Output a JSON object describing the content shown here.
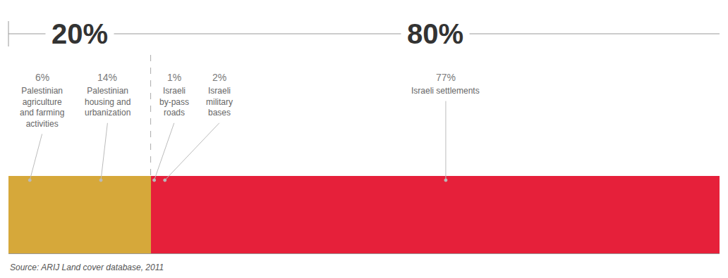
{
  "chart_data": {
    "type": "bar",
    "orientation": "horizontal",
    "stacked": true,
    "data_labels": true,
    "tick_labels": false,
    "xlim": [
      0,
      100
    ],
    "groups": [
      {
        "value": 20,
        "label": "20%"
      },
      {
        "value": 80,
        "label": "80%"
      }
    ],
    "series": [
      {
        "name": "Palestinian agriculture and farming activities",
        "values": [
          6
        ],
        "value_labels": [
          "6%"
        ],
        "color": "#d6a83a"
      },
      {
        "name": "Palestinian housing and urbanization",
        "values": [
          14
        ],
        "value_labels": [
          "14%"
        ],
        "color": "#d6a83a"
      },
      {
        "name": "Israeli by-pass roads",
        "values": [
          1
        ],
        "value_labels": [
          "1%"
        ],
        "color": "#e6203a"
      },
      {
        "name": "Israeli military bases",
        "values": [
          2
        ],
        "value_labels": [
          "2%"
        ],
        "color": "#e6203a"
      },
      {
        "name": "Israeli settlements",
        "values": [
          77
        ],
        "value_labels": [
          "77%"
        ],
        "color": "#e6203a"
      }
    ],
    "source": "Source: ARIJ Land cover database, 2011"
  }
}
